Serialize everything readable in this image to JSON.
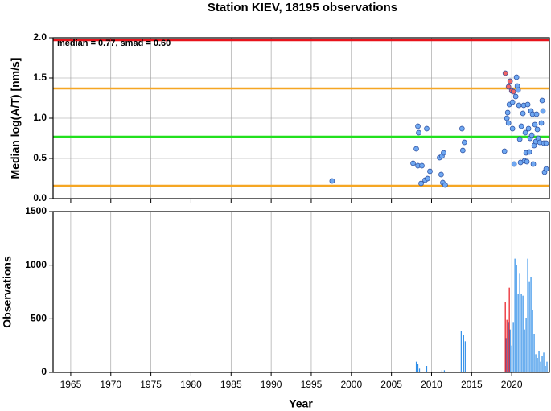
{
  "chart_data": [
    {
      "type": "scatter",
      "title": "Station KIEV, 18195 observations",
      "ylabel": "Median log(A/T) [nm/s]",
      "annotation": "median = 0.77, smad = 0.60",
      "xlim": [
        1962.8,
        2024.7
      ],
      "xticks": [
        1965,
        1970,
        1975,
        1980,
        1985,
        1990,
        1995,
        2000,
        2005,
        2010,
        2015,
        2020
      ],
      "ylim": [
        0,
        2
      ],
      "yticks": [
        {
          "value": 0,
          "label": "0.0"
        },
        {
          "value": 0.5,
          "label": "0.5"
        },
        {
          "value": 1,
          "label": "1.0"
        },
        {
          "value": 1.5,
          "label": "1.5"
        },
        {
          "value": 2,
          "label": "2.0"
        }
      ],
      "grid": true,
      "lines": [
        {
          "value": 1.97,
          "color": "#e8131b"
        },
        {
          "value": 1.37,
          "color": "#f5a623"
        },
        {
          "value": 0.77,
          "color": "#22e01e"
        },
        {
          "value": 0.16,
          "color": "#f5a623"
        }
      ],
      "series": [
        {
          "color": "#6fa8f2",
          "x": [
            1997.6,
            2007.7,
            2008.1,
            2008.3,
            2008.4,
            2008.3,
            2008.8,
            2008.7,
            2009.2,
            2009.4,
            2009.5,
            2009.8,
            2011.0,
            2011.3,
            2011.5,
            2011.2,
            2011.4,
            2011.7,
            2013.8,
            2014.1,
            2013.9,
            2019.1,
            2019.4,
            2019.5,
            2019.6,
            2019.7,
            2020.1,
            2020.1,
            2020.3,
            2020.5,
            2020.6,
            2020.7,
            2020.8,
            2020.9,
            2021.0,
            2021.1,
            2021.2,
            2021.4,
            2021.5,
            2021.6,
            2021.7,
            2021.8,
            2021.9,
            2022.0,
            2022.1,
            2022.2,
            2022.3,
            2022.4,
            2022.5,
            2022.6,
            2022.7,
            2022.8,
            2022.9,
            2023.0,
            2023.1,
            2023.2,
            2023.3,
            2023.5,
            2023.7,
            2023.8,
            2023.9,
            2024.0,
            2024.1,
            2024.3,
            2024.3
          ],
          "values": [
            0.22,
            0.44,
            0.62,
            0.9,
            0.82,
            0.41,
            0.41,
            0.19,
            0.23,
            0.87,
            0.25,
            0.34,
            0.51,
            0.53,
            0.57,
            0.3,
            0.2,
            0.17,
            0.87,
            0.7,
            0.6,
            0.59,
            1.0,
            1.07,
            0.94,
            1.17,
            1.2,
            0.87,
            0.43,
            1.27,
            1.51,
            1.4,
            1.35,
            1.16,
            0.74,
            0.45,
            0.9,
            1.06,
            1.16,
            0.47,
            0.82,
            0.57,
            0.46,
            1.17,
            0.87,
            0.58,
            0.75,
            1.09,
            0.79,
            1.05,
            0.43,
            0.66,
            0.92,
            0.71,
            1.05,
            0.86,
            0.75,
            0.7,
            0.94,
            1.22,
            1.09,
            0.69,
            0.33,
            0.37,
            0.69
          ]
        },
        {
          "color": "#f26464",
          "x": [
            2019.2,
            2019.6,
            2019.8,
            2020.0,
            2020.2
          ],
          "values": [
            1.56,
            1.39,
            1.46,
            1.34,
            1.33
          ]
        }
      ]
    },
    {
      "type": "bar",
      "ylabel": "Observations",
      "xlabel": "Year",
      "xlim": [
        1962.8,
        2024.7
      ],
      "xticks": [
        1965,
        1970,
        1975,
        1980,
        1985,
        1990,
        1995,
        2000,
        2005,
        2010,
        2015,
        2020
      ],
      "ylim": [
        0,
        1500
      ],
      "yticks": [
        0,
        500,
        1000,
        1500
      ],
      "grid": true,
      "series": [
        {
          "color": "#2f8ee8",
          "x": [
            1997.6,
            2008.1,
            2008.3,
            2008.5,
            2009.4,
            2011.3,
            2011.6,
            2013.7,
            2014.0,
            2014.2,
            2019.3,
            2019.6,
            2019.8,
            2020.0,
            2020.2,
            2020.4,
            2020.6,
            2020.8,
            2021.0,
            2021.2,
            2021.4,
            2021.6,
            2021.8,
            2022.0,
            2022.2,
            2022.4,
            2022.6,
            2022.8,
            2023.0,
            2023.2,
            2023.4,
            2023.6,
            2023.8,
            2024.0,
            2024.2,
            2024.4
          ],
          "values": [
            5,
            100,
            80,
            35,
            60,
            20,
            20,
            390,
            350,
            290,
            320,
            470,
            400,
            250,
            470,
            1060,
            1000,
            735,
            920,
            735,
            715,
            400,
            510,
            1060,
            850,
            885,
            585,
            360,
            170,
            135,
            195,
            100,
            150,
            185,
            60,
            100
          ]
        },
        {
          "color": "#e8131b",
          "x": [
            2019.2,
            2019.4,
            2019.7
          ],
          "values": [
            660,
            490,
            790
          ]
        }
      ]
    }
  ]
}
